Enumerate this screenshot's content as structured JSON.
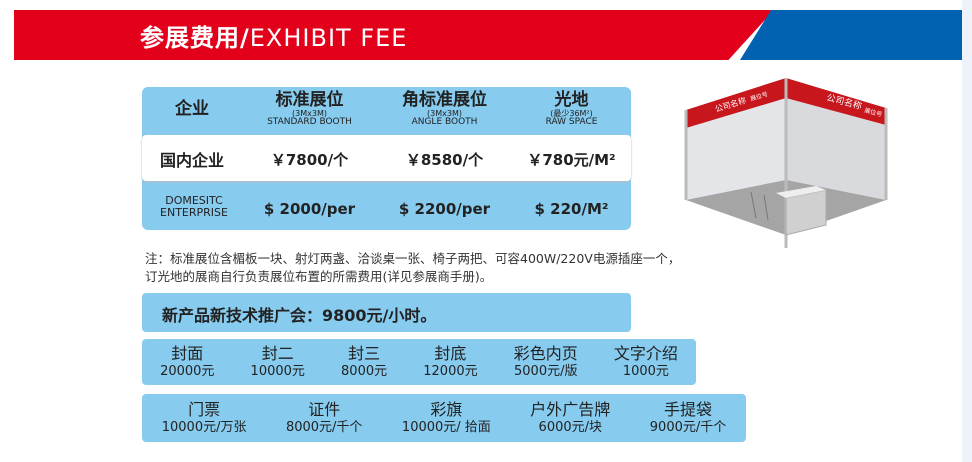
{
  "header": {
    "title_cn": "参展费用/",
    "title_en": "EXHIBIT FEE",
    "colors": {
      "red": "#e2001a",
      "blue": "#0062b0",
      "panel": "#87cbef"
    }
  },
  "fee_table": {
    "columns": [
      {
        "cn": "企业"
      },
      {
        "cn": "标准展位",
        "size": "(3Mx3M)",
        "en": "STANDARD BOOTH"
      },
      {
        "cn": "角标准展位",
        "size": "(3Mx3M)",
        "en": "ANGLE BOOTH"
      },
      {
        "cn": "光地",
        "size": "(最少36M²)",
        "en": "RAW SPACE"
      }
    ],
    "rows": [
      {
        "label": "国内企业",
        "values": [
          "￥7800/个",
          "￥8580/个",
          "￥780元/M²"
        ]
      },
      {
        "label": "DOMESITC ENTERPRISE",
        "values": [
          "$ 2000/per",
          "$ 2200/per",
          "$ 220/M²"
        ]
      }
    ]
  },
  "note": [
    "注：标准展位含楣板一块、射灯两盏、洽谈桌一张、椅子两把、可容400W/220V电源插座一个，",
    "订光地的展商自行负责展位布置的所需费用(详见参展商手册)。"
  ],
  "promo": "新产品新技术推广会：9800元/小时。",
  "ads": [
    {
      "name": "封面",
      "price": "20000元"
    },
    {
      "name": "封二",
      "price": "10000元"
    },
    {
      "name": "封三",
      "price": "8000元"
    },
    {
      "name": "封底",
      "price": "12000元"
    },
    {
      "name": "彩色内页",
      "price": "5000元/版"
    },
    {
      "name": "文字介绍",
      "price": "1000元"
    }
  ],
  "others": [
    {
      "name": "门票",
      "price": "10000元/万张"
    },
    {
      "name": "证件",
      "price": "8000元/千个"
    },
    {
      "name": "彩旗",
      "price": "10000元/ 拾面"
    },
    {
      "name": "户外广告牌",
      "price": "6000元/块"
    },
    {
      "name": "手提袋",
      "price": "9000元/千个"
    }
  ],
  "booth_image": {
    "fascia_name": "公司名称",
    "fascia_number": "展位号"
  }
}
